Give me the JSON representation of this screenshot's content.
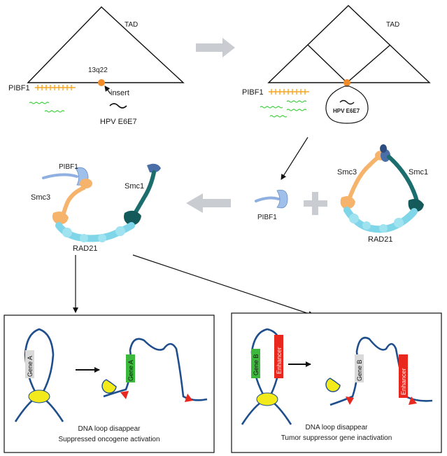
{
  "top_left": {
    "tad_label": "TAD",
    "locus_label": "13q22",
    "gene_label": "PIBF1",
    "insert_label": "insert",
    "virus_label": "HPV E6E7"
  },
  "top_right": {
    "tad_label": "TAD",
    "gene_label": "PIBF1",
    "virus_label": "HPV E6E7"
  },
  "middle_left": {
    "pibf1_label": "PIBF1",
    "smc3_label": "Smc3",
    "smc1_label": "Smc1",
    "rad21_label": "RAD21"
  },
  "middle_right": {
    "pibf1_label": "PIBF1",
    "smc3_label": "Smc3",
    "smc1_label": "Smc1",
    "rad21_label": "RAD21"
  },
  "panel_left": {
    "gene_a_label": "Gene A",
    "caption_line1": "DNA loop disappear",
    "caption_line2": "Suppressed oncogene activation"
  },
  "panel_right": {
    "gene_b_label": "Gene B",
    "enhancer_label": "Enhancer",
    "caption_line1": "DNA loop disappear",
    "caption_line2": "Tumor suppressor gene inactivation"
  },
  "colors": {
    "orange_dot": "#f28c28",
    "gene_orange": "#f5a623",
    "green_rna": "#3ecf3e",
    "dna_blue": "#1f4e8c",
    "rad21_cyan": "#7fd6e8",
    "smc3_orange": "#f5b36b",
    "smc1_teal": "#1c6e6e",
    "pibf1_blue": "#8fb0e0",
    "gene_a_green": "#3cb83c",
    "gene_b_green": "#3cb83c",
    "gene_grey": "#d9d9d9",
    "enhancer_red": "#e8281e",
    "yellow_ring": "#f2ea1a",
    "arrow_grey": "#c9ccd1"
  }
}
